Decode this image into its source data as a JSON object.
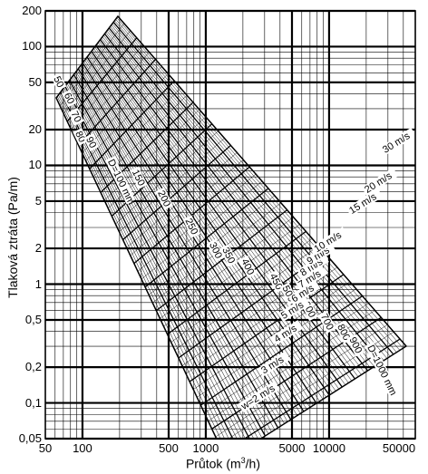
{
  "chart_data": {
    "type": "nomogram",
    "xlabel_prefix": "Průtok (m",
    "xlabel_sup": "3",
    "xlabel_suffix": "/h)",
    "ylabel": "Tlaková ztráta (Pa/m)",
    "x_scale": "log",
    "y_scale": "log",
    "xlim": [
      50,
      50000
    ],
    "ylim": [
      0.05,
      200
    ],
    "grid": true,
    "x_ticks": [
      {
        "value": 50,
        "label": "50"
      },
      {
        "value": 100,
        "label": "100"
      },
      {
        "value": 500,
        "label": "500"
      },
      {
        "value": 1000,
        "label": "1000"
      },
      {
        "value": 5000,
        "label": "5000"
      },
      {
        "value": 10000,
        "label": "10000"
      },
      {
        "value": 50000,
        "label": "50000"
      }
    ],
    "y_ticks": [
      {
        "value": 200,
        "label": "200"
      },
      {
        "value": 100,
        "label": "100"
      },
      {
        "value": 50,
        "label": "50"
      },
      {
        "value": 20,
        "label": "20"
      },
      {
        "value": 10,
        "label": "10"
      },
      {
        "value": 5,
        "label": "5"
      },
      {
        "value": 2,
        "label": "2"
      },
      {
        "value": 1,
        "label": "1"
      },
      {
        "value": 0.5,
        "label": "0,5"
      },
      {
        "value": 0.2,
        "label": "0,2"
      },
      {
        "value": 0.1,
        "label": "0,1"
      },
      {
        "value": 0.05,
        "label": "0,05"
      }
    ],
    "diameter_lines_mm": [
      {
        "label": "50",
        "x": 60,
        "y": 55
      },
      {
        "label": "60",
        "x": 73,
        "y": 40
      },
      {
        "label": "70",
        "x": 83,
        "y": 28
      },
      {
        "label": "80",
        "x": 90,
        "y": 19
      },
      {
        "label": "90",
        "x": 110,
        "y": 17
      },
      {
        "label": "D=100 mm",
        "x": 165,
        "y": 11
      },
      {
        "label": "150",
        "x": 260,
        "y": 9
      },
      {
        "label": "200",
        "x": 420,
        "y": 6
      },
      {
        "label": "250",
        "x": 700,
        "y": 3.5
      },
      {
        "label": "300",
        "x": 1100,
        "y": 2.2
      },
      {
        "label": "350",
        "x": 1400,
        "y": 2
      },
      {
        "label": "400",
        "x": 2000,
        "y": 1.6
      },
      {
        "label": "450",
        "x": 3400,
        "y": 1.2
      },
      {
        "label": "500",
        "x": 4300,
        "y": 0.95
      },
      {
        "label": "600",
        "x": 6300,
        "y": 0.7
      },
      {
        "label": "700",
        "x": 8800,
        "y": 0.55
      },
      {
        "label": "800",
        "x": 12000,
        "y": 0.45
      },
      {
        "label": "900",
        "x": 15000,
        "y": 0.35
      },
      {
        "label": "D=1000 mm",
        "x": 21000,
        "y": 0.3
      }
    ],
    "velocity_lines": [
      {
        "label": "w=2 m/s",
        "x": 2000,
        "y": 0.09
      },
      {
        "label": "3 m/s",
        "x": 2900,
        "y": 0.18
      },
      {
        "label": "4 m/s",
        "x": 3700,
        "y": 0.33
      },
      {
        "label": "5 m/s",
        "x": 4200,
        "y": 0.52
      },
      {
        "label": "6 m/s",
        "x": 5100,
        "y": 0.72
      },
      {
        "label": "7 m/s",
        "x": 5800,
        "y": 0.95
      },
      {
        "label": "8 m/s",
        "x": 6000,
        "y": 1.2
      },
      {
        "label": "9 m/s",
        "x": 6800,
        "y": 1.5
      },
      {
        "label": "10 m/s",
        "x": 7800,
        "y": 1.9
      },
      {
        "label": "15 m/s",
        "x": 15000,
        "y": 4
      },
      {
        "label": "20 m/s",
        "x": 20000,
        "y": 6
      },
      {
        "label": "30 m/s",
        "x": 28000,
        "y": 13
      }
    ]
  }
}
